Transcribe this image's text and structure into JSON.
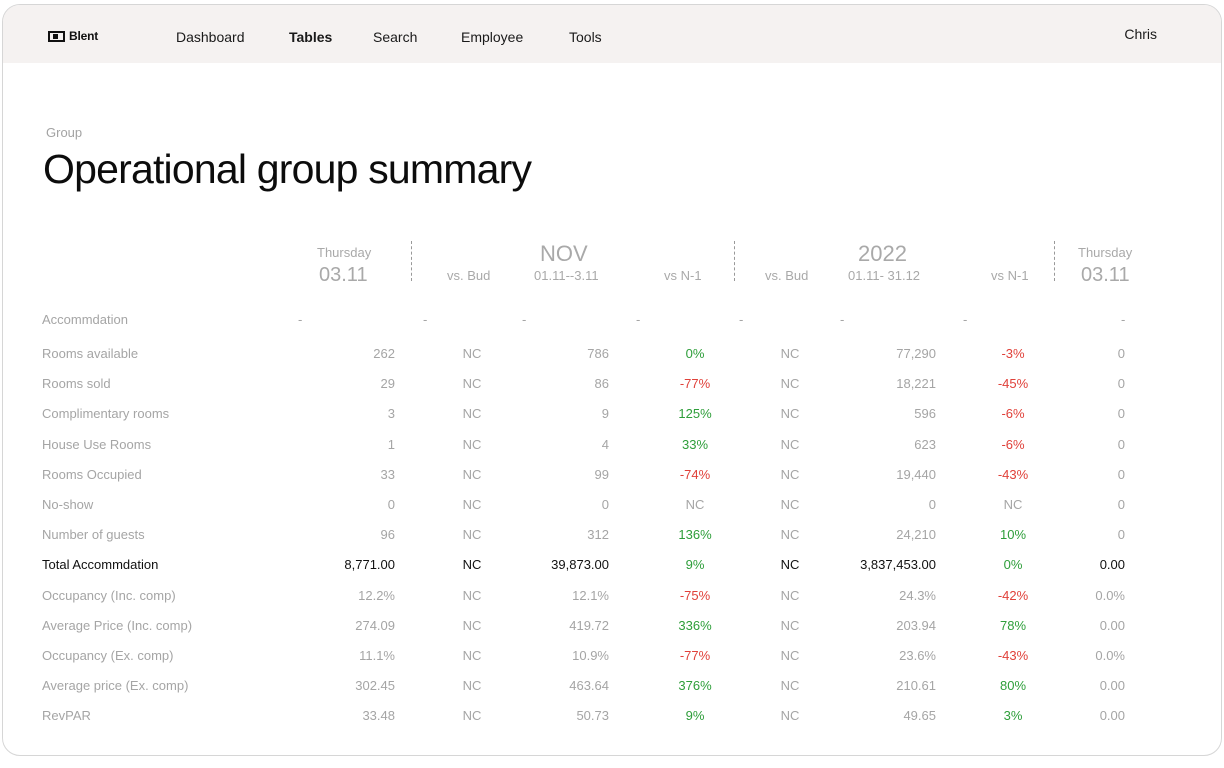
{
  "app": {
    "logo_text": "Blent",
    "user_name": "Chris"
  },
  "nav": [
    {
      "label": "Dashboard",
      "active": false
    },
    {
      "label": "Tables",
      "active": true
    },
    {
      "label": "Search",
      "active": false
    },
    {
      "label": "Employee",
      "active": false
    },
    {
      "label": "Tools",
      "active": false
    }
  ],
  "breadcrumb": "Group",
  "title": "Operational group summary",
  "table": {
    "header": {
      "day_left": "Thursday",
      "date_left": "03.11",
      "month": "NOV",
      "month_vs_bud": "vs. Bud",
      "month_range": "01.11--3.11",
      "month_vs_n1": "vs N-1",
      "year": "2022",
      "year_vs_bud": "vs. Bud",
      "year_range": "01.11- 31.12",
      "year_vs_n1": "vs N-1",
      "day_right": "Thursday",
      "date_right": "03.11"
    },
    "section_label": "Accommdation",
    "section_dash": "-",
    "rows": [
      {
        "label": "Rooms available",
        "day": "262",
        "mbud": "NC",
        "mval": "786",
        "mn1": "0%",
        "ybud": "NC",
        "yval": "77,290",
        "yn1": "-3%",
        "rday": "0"
      },
      {
        "label": "Rooms sold",
        "day": "29",
        "mbud": "NC",
        "mval": "86",
        "mn1": "-77%",
        "ybud": "NC",
        "yval": "18,221",
        "yn1": "-45%",
        "rday": "0"
      },
      {
        "label": "Complimentary rooms",
        "day": "3",
        "mbud": "NC",
        "mval": "9",
        "mn1": "125%",
        "ybud": "NC",
        "yval": "596",
        "yn1": "-6%",
        "rday": "0"
      },
      {
        "label": "House Use Rooms",
        "day": "1",
        "mbud": "NC",
        "mval": "4",
        "mn1": "33%",
        "ybud": "NC",
        "yval": "623",
        "yn1": "-6%",
        "rday": "0"
      },
      {
        "label": "Rooms Occupied",
        "day": "33",
        "mbud": "NC",
        "mval": "99",
        "mn1": "-74%",
        "ybud": "NC",
        "yval": "19,440",
        "yn1": "-43%",
        "rday": "0"
      },
      {
        "label": "No-show",
        "day": "0",
        "mbud": "NC",
        "mval": "0",
        "mn1": "NC",
        "ybud": "NC",
        "yval": "0",
        "yn1": "NC",
        "rday": "0"
      },
      {
        "label": "Number of guests",
        "day": "96",
        "mbud": "NC",
        "mval": "312",
        "mn1": "136%",
        "ybud": "NC",
        "yval": "24,210",
        "yn1": "10%",
        "rday": "0"
      },
      {
        "label": "Total Accommdation",
        "day": "8,771.00",
        "mbud": "NC",
        "mval": "39,873.00",
        "mn1": "9%",
        "ybud": "NC",
        "yval": "3,837,453.00",
        "yn1": "0%",
        "rday": "0.00"
      },
      {
        "label": "Occupancy (Inc. comp)",
        "day": "12.2%",
        "mbud": "NC",
        "mval": "12.1%",
        "mn1": "-75%",
        "ybud": "NC",
        "yval": "24.3%",
        "yn1": "-42%",
        "rday": "0.0%"
      },
      {
        "label": "Average Price (Inc. comp)",
        "day": "274.09",
        "mbud": "NC",
        "mval": "419.72",
        "mn1": "336%",
        "ybud": "NC",
        "yval": "203.94",
        "yn1": "78%",
        "rday": "0.00"
      },
      {
        "label": "Occupancy (Ex. comp)",
        "day": "11.1%",
        "mbud": "NC",
        "mval": "10.9%",
        "mn1": "-77%",
        "ybud": "NC",
        "yval": "23.6%",
        "yn1": "-43%",
        "rday": "0.0%"
      },
      {
        "label": "Average price (Ex. comp)",
        "day": "302.45",
        "mbud": "NC",
        "mval": "463.64",
        "mn1": "376%",
        "ybud": "NC",
        "yval": "210.61",
        "yn1": "80%",
        "rday": "0.00"
      },
      {
        "label": "RevPAR",
        "day": "33.48",
        "mbud": "NC",
        "mval": "50.73",
        "mn1": "9%",
        "ybud": "NC",
        "yval": "49.65",
        "yn1": "3%",
        "rday": "0.00"
      }
    ]
  },
  "colors": {
    "positive": "#2e9e3a",
    "negative": "#e0413a",
    "muted": "#a5a5a5",
    "topbar_bg": "#f5f2f1"
  }
}
